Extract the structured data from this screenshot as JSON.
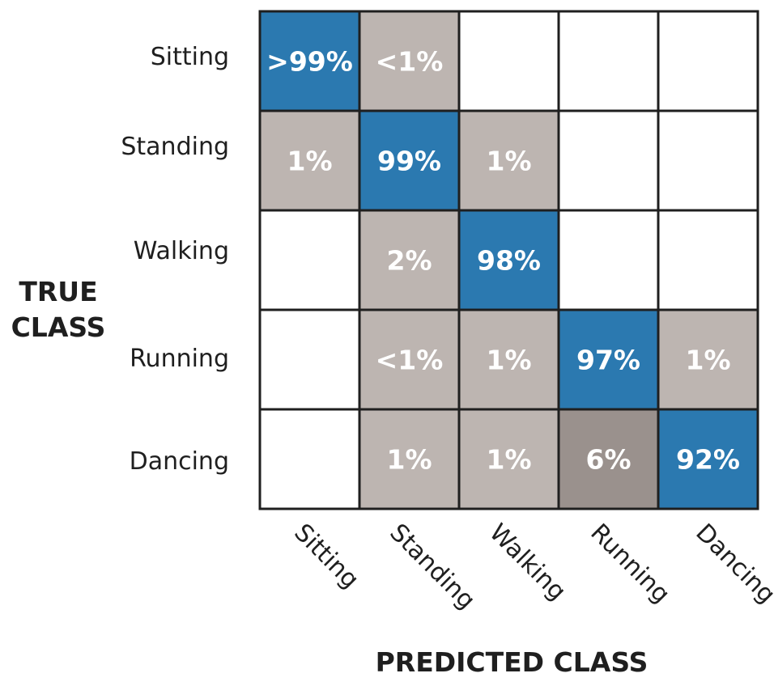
{
  "chart_data": {
    "type": "heatmap",
    "title": "",
    "xlabel": "PREDICTED CLASS",
    "ylabel": [
      "TRUE",
      "CLASS"
    ],
    "rows": [
      "Sitting",
      "Standing",
      "Walking",
      "Running",
      "Dancing"
    ],
    "columns": [
      "Sitting",
      "Standing",
      "Walking",
      "Running",
      "Dancing"
    ],
    "cells": [
      [
        ">99%",
        "<1%",
        "",
        "",
        ""
      ],
      [
        "1%",
        "99%",
        "1%",
        "",
        ""
      ],
      [
        "",
        "2%",
        "98%",
        "",
        ""
      ],
      [
        "",
        "<1%",
        "1%",
        "97%",
        "1%"
      ],
      [
        "",
        "1%",
        "1%",
        "6%",
        "92%"
      ]
    ],
    "values": [
      [
        99.5,
        0.5,
        0,
        0,
        0
      ],
      [
        1,
        99,
        1,
        0,
        0
      ],
      [
        0,
        2,
        98,
        0,
        0
      ],
      [
        0,
        0.5,
        1,
        97,
        1
      ],
      [
        0,
        1,
        1,
        6,
        92
      ]
    ],
    "grid": true,
    "colors": {
      "diagonal": "#2b79b0",
      "off_diagonal": "#bdb5b1",
      "strong_off_diagonal": "#9a918d",
      "empty": "#ffffff",
      "text": "#ffffff",
      "label": "#1f1f1f"
    }
  }
}
